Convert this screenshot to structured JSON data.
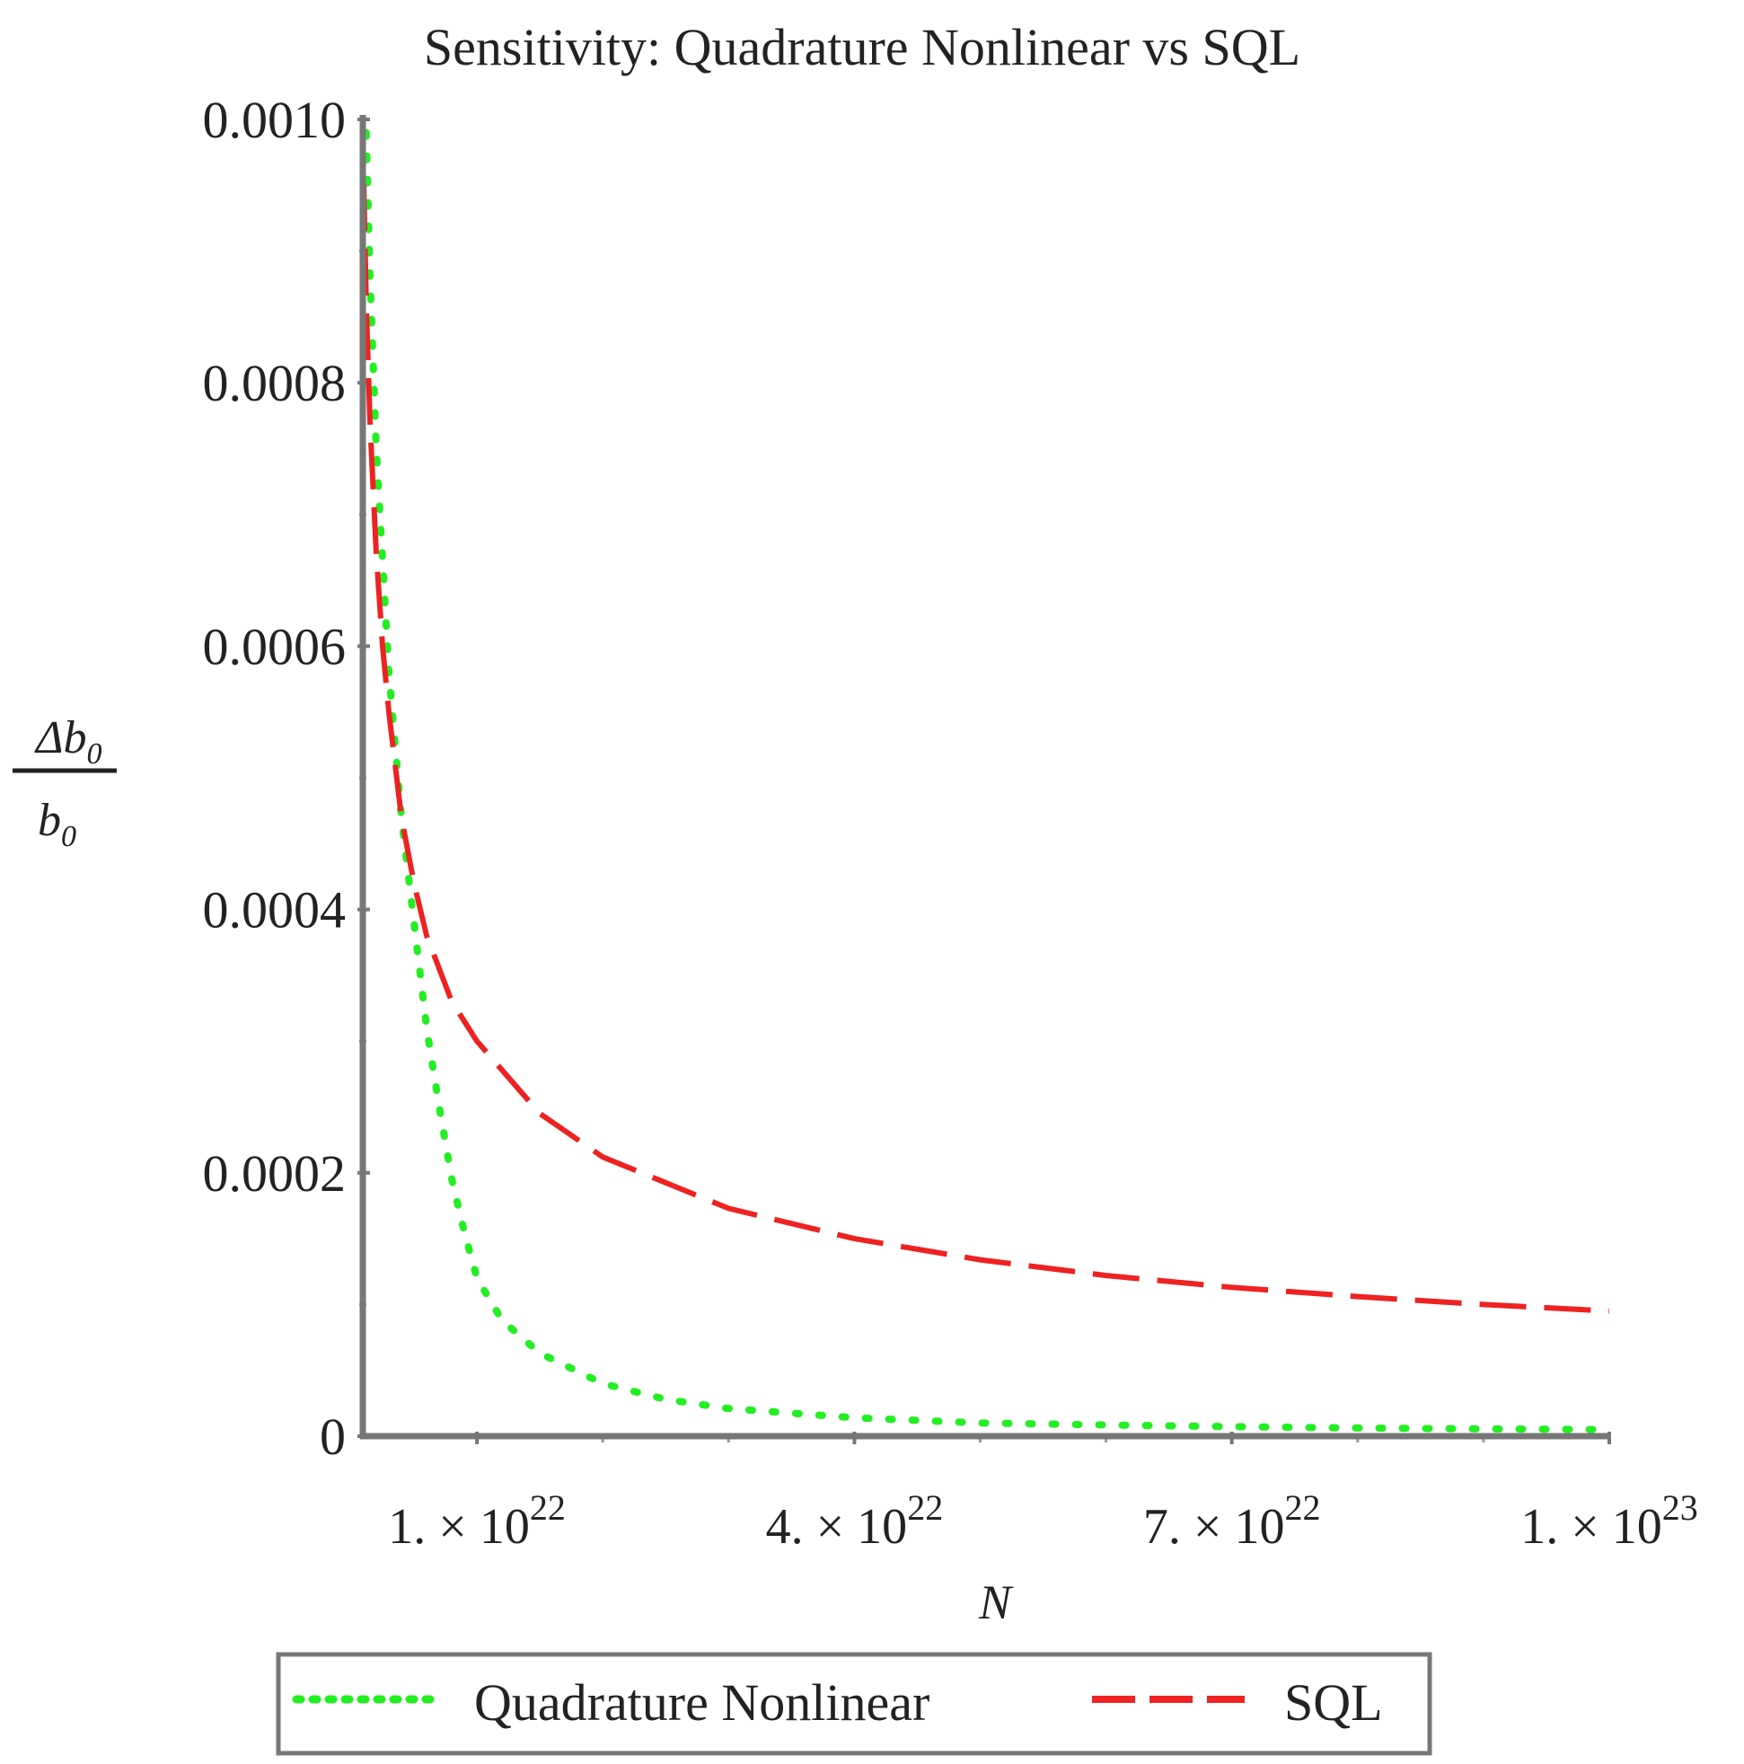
{
  "chart_data": {
    "type": "line",
    "title": "Sensitivity:  Quadrature Nonlinear vs SQL",
    "xlabel": "N",
    "ylabel": {
      "numerator": "Δb",
      "numerator_sub": "0",
      "denominator": "b",
      "denominator_sub": "0"
    },
    "xlim": [
      1e+21,
      1e+23
    ],
    "ylim": [
      0,
      0.001
    ],
    "x_ticks": [
      {
        "value": 1e+22,
        "mantissa": "1. × 10",
        "exponent": "22"
      },
      {
        "value": 4e+22,
        "mantissa": "4. × 10",
        "exponent": "22"
      },
      {
        "value": 7e+22,
        "mantissa": "7. × 10",
        "exponent": "22"
      },
      {
        "value": 1e+23,
        "mantissa": "1. × 10",
        "exponent": "23"
      }
    ],
    "x_minor_ticks": [
      2e+22,
      3e+22,
      5e+22,
      6e+22,
      8e+22,
      9e+22
    ],
    "y_ticks": [
      {
        "value": 0,
        "label": "0"
      },
      {
        "value": 0.0002,
        "label": "0.0002"
      },
      {
        "value": 0.0004,
        "label": "0.0004"
      },
      {
        "value": 0.0006,
        "label": "0.0006"
      },
      {
        "value": 0.0008,
        "label": "0.0008"
      },
      {
        "value": 0.001,
        "label": "0.0010"
      }
    ],
    "y_minor_ticks": [
      0.0001,
      0.0003,
      0.0005,
      0.0007,
      0.0009
    ],
    "grid": false,
    "legend_position": "bottom",
    "series": [
      {
        "name": "Quadrature Nonlinear",
        "color": "#22ee22",
        "style": "dotted",
        "points": [
          [
            1.2e+21,
            0.00099
          ],
          [
            1.5e+21,
            0.00088
          ],
          [
            2e+21,
            0.00075
          ],
          [
            3e+21,
            0.00058
          ],
          [
            4e+21,
            0.00047
          ],
          [
            5e+21,
            0.00039
          ],
          [
            6e+21,
            0.00031
          ],
          [
            7e+21,
            0.00025
          ],
          [
            8e+21,
            0.000195
          ],
          [
            9e+21,
            0.000155
          ],
          [
            1e+22,
            0.00012
          ],
          [
            1.2e+22,
            8.8e-05
          ],
          [
            1.5e+22,
            6.3e-05
          ],
          [
            2e+22,
            4e-05
          ],
          [
            2.5e+22,
            2.8e-05
          ],
          [
            3e+22,
            2.1e-05
          ],
          [
            4e+22,
            1.4e-05
          ],
          [
            5e+22,
            1e-05
          ],
          [
            6e+22,
            8.5e-06
          ],
          [
            7e+22,
            7.2e-06
          ],
          [
            8e+22,
            6.2e-06
          ],
          [
            9e+22,
            5.5e-06
          ],
          [
            1e+23,
            5e-06
          ]
        ]
      },
      {
        "name": "SQL",
        "color": "#ee2222",
        "style": "dashed",
        "points": [
          [
            9e+20,
            0.001
          ],
          [
            1.2e+21,
            0.00086
          ],
          [
            1.5e+21,
            0.00077
          ],
          [
            2e+21,
            0.00067
          ],
          [
            2.5e+21,
            0.0006
          ],
          [
            3e+21,
            0.00055
          ],
          [
            4e+21,
            0.00047
          ],
          [
            5e+21,
            0.00042
          ],
          [
            6e+21,
            0.00038
          ],
          [
            8e+21,
            0.00033
          ],
          [
            1e+22,
            0.0003
          ],
          [
            1.5e+22,
            0.000245
          ],
          [
            2e+22,
            0.000212
          ],
          [
            3e+22,
            0.000173
          ],
          [
            4e+22,
            0.00015
          ],
          [
            5e+22,
            0.000134
          ],
          [
            6e+22,
            0.000122
          ],
          [
            7e+22,
            0.000113
          ],
          [
            8e+22,
            0.000106
          ],
          [
            9e+22,
            0.0001
          ],
          [
            1e+23,
            9.5e-05
          ]
        ]
      }
    ]
  }
}
